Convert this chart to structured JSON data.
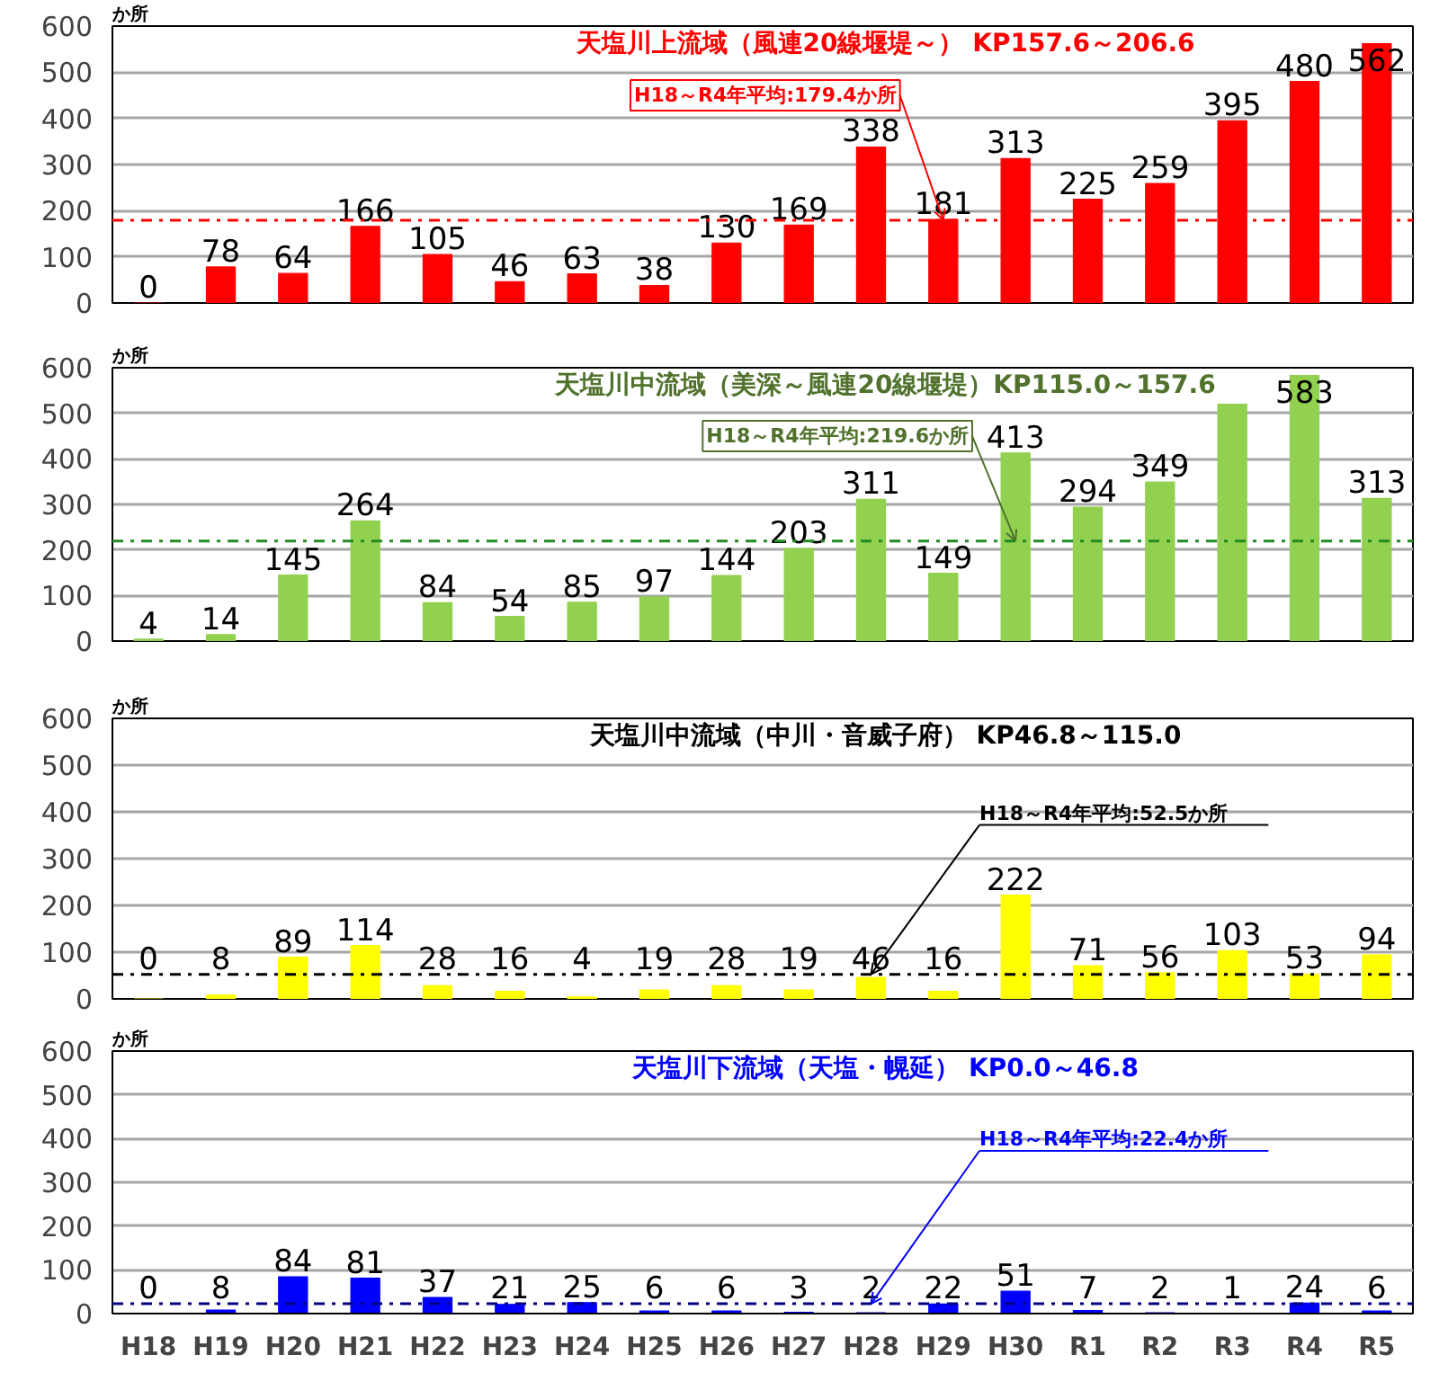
{
  "chart_data": [
    {
      "type": "bar",
      "title": "天塩川上流域（風連20線堰堤～） KP157.6～206.6",
      "ylabel": "か所",
      "categories": [
        "H18",
        "H19",
        "H20",
        "H21",
        "H22",
        "H23",
        "H24",
        "H25",
        "H26",
        "H27",
        "H28",
        "H29",
        "H30",
        "R1",
        "R2",
        "R3",
        "R4",
        "R5"
      ],
      "series": [
        {
          "color": "#ff0000",
          "values": [
            0,
            78,
            64,
            166,
            105,
            46,
            63,
            38,
            130,
            169,
            338,
            181,
            313,
            225,
            259,
            395,
            480,
            562
          ]
        }
      ],
      "ylim": [
        0,
        600
      ],
      "yticks": [
        0,
        100,
        200,
        300,
        400,
        500,
        600
      ],
      "grid": "y",
      "data_labels": true,
      "tick_labels": "y",
      "ref_lines": [
        {
          "axis": "y",
          "value": 179.4,
          "color": "#ff0000",
          "line_style": "dashdot"
        }
      ],
      "annotations": [
        {
          "text": "H18～R4年平均:179.4か所",
          "x": "H29",
          "y": 179.4
        }
      ]
    },
    {
      "type": "bar",
      "title": "天塩川中流域（美深～風連20線堰堤）KP115.0～157.6",
      "ylabel": "か所",
      "categories": [
        "H18",
        "H19",
        "H20",
        "H21",
        "H22",
        "H23",
        "H24",
        "H25",
        "H26",
        "H27",
        "H28",
        "H29",
        "H30",
        "R1",
        "R2",
        "R3",
        "R4",
        "R5"
      ],
      "series": [
        {
          "color": "#92d050",
          "values": [
            4,
            14,
            145,
            264,
            84,
            54,
            85,
            97,
            144,
            203,
            311,
            149,
            413,
            294,
            349,
            520,
            583,
            313
          ]
        }
      ],
      "value_labels": [
        "4",
        "14",
        "145",
        "264",
        "84",
        "54",
        "85",
        "97",
        "144",
        "203",
        "311",
        "149",
        "413",
        "294",
        "349",
        null,
        "583",
        "313"
      ],
      "ylim": [
        0,
        600
      ],
      "yticks": [
        0,
        100,
        200,
        300,
        400,
        500,
        600
      ],
      "grid": "y",
      "tick_labels": "y",
      "ref_lines": [
        {
          "axis": "y",
          "value": 219.6,
          "color": "#228b22",
          "line_style": "dashdot"
        }
      ],
      "annotations": [
        {
          "text": "H18～R4年平均:219.6か所",
          "x": "H30",
          "y": 219.6
        }
      ]
    },
    {
      "type": "bar",
      "title": "天塩川中流域（中川・音威子府） KP46.8～115.0",
      "ylabel": "か所",
      "categories": [
        "H18",
        "H19",
        "H20",
        "H21",
        "H22",
        "H23",
        "H24",
        "H25",
        "H26",
        "H27",
        "H28",
        "H29",
        "H30",
        "R1",
        "R2",
        "R3",
        "R4",
        "R5"
      ],
      "series": [
        {
          "color": "#ffff00",
          "values": [
            0,
            8,
            89,
            114,
            28,
            16,
            4,
            19,
            28,
            19,
            46,
            16,
            222,
            71,
            56,
            103,
            53,
            94
          ]
        }
      ],
      "ylim": [
        0,
        600
      ],
      "yticks": [
        0,
        100,
        200,
        300,
        400,
        500,
        600
      ],
      "grid": "y",
      "data_labels": true,
      "tick_labels": "y",
      "ref_lines": [
        {
          "axis": "y",
          "value": 52.5,
          "color": "#000000",
          "line_style": "dashdot"
        }
      ],
      "annotations": [
        {
          "text": "H18～R4年平均:52.5か所",
          "x": "H28",
          "y": 52.5
        }
      ]
    },
    {
      "type": "bar",
      "title": "天塩川下流域（天塩・幌延） KP0.0～46.8",
      "ylabel": "か所",
      "categories": [
        "H18",
        "H19",
        "H20",
        "H21",
        "H22",
        "H23",
        "H24",
        "H25",
        "H26",
        "H27",
        "H28",
        "H29",
        "H30",
        "R1",
        "R2",
        "R3",
        "R4",
        "R5"
      ],
      "series": [
        {
          "color": "#0000ff",
          "values": [
            0,
            8,
            84,
            81,
            37,
            21,
            25,
            6,
            6,
            3,
            2,
            22,
            51,
            7,
            2,
            1,
            24,
            6
          ]
        }
      ],
      "ylim": [
        0,
        600
      ],
      "yticks": [
        0,
        100,
        200,
        300,
        400,
        500,
        600
      ],
      "grid": "y",
      "data_labels": true,
      "ref_lines": [
        {
          "axis": "y",
          "value": 22.4,
          "color": "#000080",
          "line_style": "dashdot"
        }
      ],
      "annotations": [
        {
          "text": "H18～R4年平均:22.4か所",
          "x": "H28",
          "y": 22.4
        }
      ]
    }
  ]
}
